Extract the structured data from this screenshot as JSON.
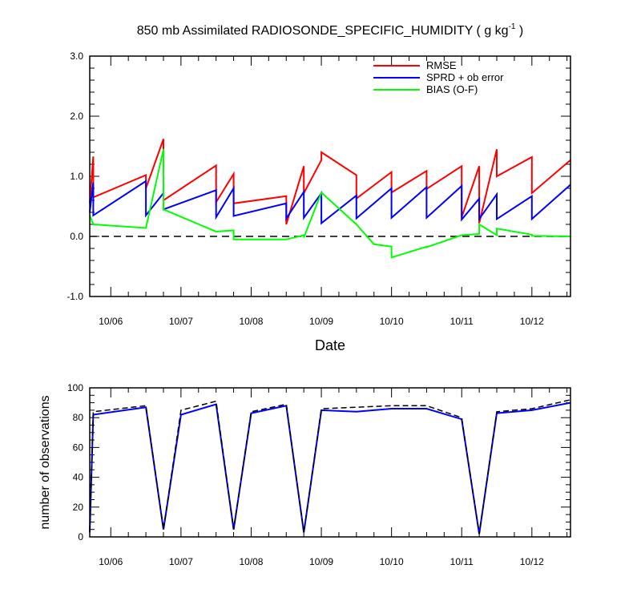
{
  "chart_data": [
    {
      "type": "line",
      "title": "850 mb Assimilated RADIOSONDE_SPECIFIC_HUMIDITY ( g kg",
      "title_sup": "-1",
      "title_tail": " )",
      "xlabel": "Date",
      "ylabel": "",
      "xlim": [
        5.7,
        12.55
      ],
      "ylim": [
        -1.0,
        3.0
      ],
      "x_tick_labels": [
        "10/06",
        "10/07",
        "10/08",
        "10/09",
        "10/10",
        "10/11",
        "10/12"
      ],
      "y_tick_labels": [
        "-1.0",
        "0.0",
        "1.0",
        "2.0",
        "3.0"
      ],
      "zero_line": true,
      "legend_position": "top-right",
      "series": [
        {
          "name": "RMSE",
          "color": "#ff0000",
          "x": [
            5.7,
            5.75,
            5.75,
            6.5,
            6.5,
            6.75,
            6.75,
            7.5,
            7.5,
            7.75,
            7.75,
            8.5,
            8.5,
            8.75,
            8.75,
            9.0,
            9.0,
            9.5,
            9.5,
            10.0,
            10.0,
            10.5,
            10.5,
            11.0,
            11.0,
            11.25,
            11.25,
            11.5,
            11.5,
            12.0,
            12.0,
            12.55
          ],
          "y": [
            0.55,
            1.33,
            0.65,
            1.02,
            0.8,
            1.62,
            0.6,
            1.18,
            0.57,
            1.04,
            0.55,
            0.67,
            0.2,
            1.17,
            0.72,
            1.27,
            1.4,
            1.02,
            0.63,
            1.07,
            0.73,
            1.09,
            0.79,
            1.17,
            0.32,
            1.17,
            0.22,
            1.45,
            1.0,
            1.32,
            0.72,
            1.27
          ]
        },
        {
          "name": "SPRD + ob error",
          "color": "#0000ff",
          "x": [
            5.7,
            5.75,
            5.75,
            6.5,
            6.5,
            6.75,
            6.75,
            7.5,
            7.5,
            7.75,
            7.75,
            8.5,
            8.5,
            8.75,
            8.75,
            9.0,
            9.0,
            9.5,
            9.5,
            10.0,
            10.0,
            10.5,
            10.5,
            11.0,
            11.0,
            11.25,
            11.25,
            11.5,
            11.5,
            12.0,
            12.0,
            12.55
          ],
          "y": [
            0.4,
            0.9,
            0.35,
            0.92,
            0.35,
            0.72,
            0.45,
            0.77,
            0.32,
            0.8,
            0.34,
            0.55,
            0.3,
            0.74,
            0.31,
            0.72,
            0.22,
            0.68,
            0.3,
            0.8,
            0.31,
            0.82,
            0.31,
            0.84,
            0.28,
            0.63,
            0.29,
            0.7,
            0.29,
            0.67,
            0.29,
            0.86
          ]
        },
        {
          "name": "BIAS (O-F)",
          "color": "#00ff00",
          "x": [
            5.7,
            5.75,
            6.5,
            6.75,
            6.75,
            7.5,
            7.75,
            7.75,
            8.5,
            8.75,
            8.75,
            9.0,
            9.5,
            9.75,
            10.0,
            10.0,
            10.5,
            10.5,
            11.0,
            11.25,
            11.25,
            11.5,
            11.5,
            12.0,
            12.0,
            12.55
          ],
          "y": [
            0.35,
            0.2,
            0.14,
            1.45,
            0.45,
            0.08,
            0.1,
            -0.05,
            -0.05,
            0.02,
            -0.02,
            0.73,
            0.2,
            -0.13,
            -0.17,
            -0.35,
            -0.17,
            -0.18,
            0.02,
            0.04,
            0.2,
            0.02,
            0.13,
            0.03,
            0.01,
            0.0
          ]
        }
      ]
    },
    {
      "type": "line",
      "title": "",
      "xlabel": "",
      "ylabel": "number of observations",
      "xlim": [
        5.7,
        12.55
      ],
      "ylim": [
        0,
        100
      ],
      "x_tick_labels": [
        "10/06",
        "10/07",
        "10/08",
        "10/09",
        "10/10",
        "10/11",
        "10/12"
      ],
      "y_tick_labels": [
        "0",
        "20",
        "40",
        "60",
        "80",
        "100"
      ],
      "series": [
        {
          "name": "",
          "color": "#000000",
          "dash": true,
          "x": [
            5.7,
            5.75,
            6.5,
            6.75,
            7.0,
            7.5,
            7.75,
            8.0,
            8.5,
            8.75,
            9.0,
            9.5,
            10.0,
            10.5,
            11.0,
            11.25,
            11.5,
            12.0,
            12.55
          ],
          "y": [
            3,
            84,
            88,
            5,
            85,
            91,
            5,
            84,
            89,
            3,
            86,
            87,
            88,
            88,
            80,
            2,
            84,
            86,
            92
          ]
        },
        {
          "name": "",
          "color": "#0000ff",
          "dash": false,
          "x": [
            5.7,
            5.75,
            6.5,
            6.75,
            7.0,
            7.5,
            7.75,
            8.0,
            8.5,
            8.75,
            9.0,
            9.5,
            10.0,
            10.5,
            11.0,
            11.25,
            11.5,
            12.0,
            12.55
          ],
          "y": [
            3,
            82,
            87,
            5,
            82,
            89,
            5,
            83,
            88,
            3,
            85,
            84,
            86,
            86,
            79,
            2,
            83,
            85,
            90
          ]
        }
      ]
    }
  ]
}
